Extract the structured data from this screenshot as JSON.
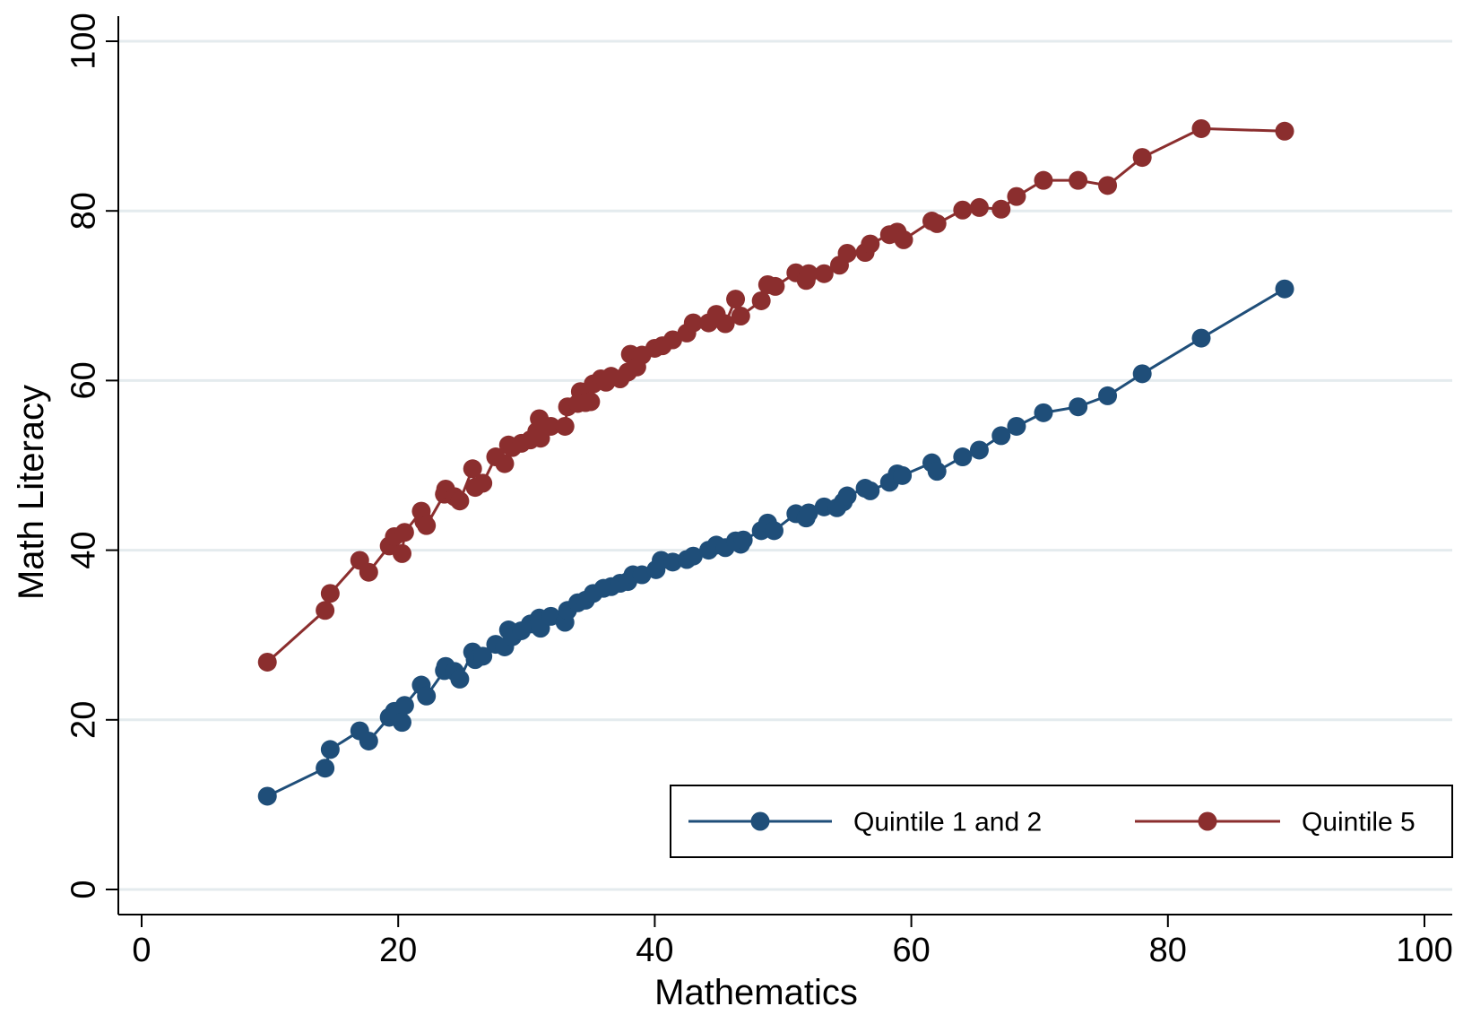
{
  "chart_data": {
    "type": "line",
    "title": "",
    "xlabel": "Mathematics",
    "ylabel": "Math Literacy",
    "xlim": [
      0,
      100
    ],
    "ylim": [
      0,
      100
    ],
    "xticks": [
      0,
      20,
      40,
      60,
      80,
      100
    ],
    "yticks": [
      0,
      20,
      40,
      60,
      80,
      100
    ],
    "grid": "horizontal",
    "legend_position": "bottom-right",
    "series": [
      {
        "name": "Quintile 1 and 2",
        "color": "#1f4e79",
        "markers": "filled-circle",
        "points": [
          [
            9.8,
            11
          ],
          [
            14.3,
            14.3
          ],
          [
            14.7,
            16.5
          ],
          [
            17,
            18.7
          ],
          [
            17.7,
            17.5
          ],
          [
            19.3,
            20.3
          ],
          [
            19.7,
            21
          ],
          [
            20.3,
            19.7
          ],
          [
            20.5,
            21.7
          ],
          [
            21.8,
            24.1
          ],
          [
            22.2,
            22.8
          ],
          [
            23.6,
            25.8
          ],
          [
            23.7,
            26.3
          ],
          [
            24.4,
            25.7
          ],
          [
            24.8,
            24.8
          ],
          [
            25.8,
            28
          ],
          [
            26,
            27.1
          ],
          [
            26.6,
            27.5
          ],
          [
            27.6,
            28.9
          ],
          [
            28.3,
            28.6
          ],
          [
            28.6,
            30.6
          ],
          [
            28.9,
            29.8
          ],
          [
            29.6,
            30.5
          ],
          [
            30.3,
            31.3
          ],
          [
            31,
            32
          ],
          [
            31.1,
            30.8
          ],
          [
            31.9,
            32.2
          ],
          [
            33,
            31.5
          ],
          [
            33.2,
            32.9
          ],
          [
            34,
            33.8
          ],
          [
            34.6,
            34.1
          ],
          [
            35.2,
            34.9
          ],
          [
            36,
            35.5
          ],
          [
            36.6,
            35.7
          ],
          [
            37.3,
            36.1
          ],
          [
            37.9,
            36.3
          ],
          [
            38.3,
            37.1
          ],
          [
            39,
            37.1
          ],
          [
            40.1,
            37.7
          ],
          [
            40.5,
            38.8
          ],
          [
            41.4,
            38.6
          ],
          [
            42.5,
            38.9
          ],
          [
            43,
            39.3
          ],
          [
            44.2,
            40
          ],
          [
            44.8,
            40.6
          ],
          [
            45.5,
            40.3
          ],
          [
            46.3,
            41.1
          ],
          [
            46.7,
            40.7
          ],
          [
            46.9,
            41.2
          ],
          [
            48.3,
            42.3
          ],
          [
            48.8,
            43.2
          ],
          [
            49.3,
            42.3
          ],
          [
            51,
            44.3
          ],
          [
            51.8,
            43.8
          ],
          [
            52,
            44.4
          ],
          [
            53.2,
            45.1
          ],
          [
            54.2,
            45
          ],
          [
            54.7,
            45.7
          ],
          [
            55,
            46.4
          ],
          [
            56.4,
            47.3
          ],
          [
            56.8,
            47
          ],
          [
            58.3,
            48
          ],
          [
            58.9,
            49
          ],
          [
            59.3,
            48.8
          ],
          [
            61.6,
            50.3
          ],
          [
            62,
            49.3
          ],
          [
            64,
            51
          ],
          [
            65.3,
            51.8
          ],
          [
            67,
            53.5
          ],
          [
            68.2,
            54.6
          ],
          [
            70.3,
            56.2
          ],
          [
            73,
            56.9
          ],
          [
            75.3,
            58.2
          ],
          [
            78,
            60.8
          ],
          [
            82.6,
            65
          ],
          [
            89.1,
            70.8
          ]
        ]
      },
      {
        "name": "Quintile 5",
        "color": "#8b2e2e",
        "markers": "filled-circle",
        "points": [
          [
            9.8,
            26.8
          ],
          [
            14.3,
            32.9
          ],
          [
            14.7,
            34.9
          ],
          [
            17,
            38.8
          ],
          [
            17.7,
            37.4
          ],
          [
            19.3,
            40.5
          ],
          [
            19.7,
            41.6
          ],
          [
            20.3,
            39.6
          ],
          [
            20.5,
            42.1
          ],
          [
            21.8,
            44.6
          ],
          [
            22,
            43.4
          ],
          [
            22.2,
            42.9
          ],
          [
            23.6,
            46.6
          ],
          [
            23.7,
            47.2
          ],
          [
            24.4,
            46.3
          ],
          [
            24.8,
            45.8
          ],
          [
            25.8,
            49.6
          ],
          [
            26,
            47.4
          ],
          [
            26.6,
            47.9
          ],
          [
            27.6,
            51
          ],
          [
            28.3,
            50.2
          ],
          [
            28.6,
            52.4
          ],
          [
            28.9,
            52.1
          ],
          [
            29.6,
            52.6
          ],
          [
            30.3,
            53
          ],
          [
            30.8,
            54
          ],
          [
            31,
            55.5
          ],
          [
            31.1,
            53.2
          ],
          [
            31.9,
            54.6
          ],
          [
            33,
            54.6
          ],
          [
            33.2,
            56.9
          ],
          [
            34,
            57.3
          ],
          [
            34.2,
            58.7
          ],
          [
            34.6,
            57.4
          ],
          [
            35,
            57.5
          ],
          [
            35.2,
            59.6
          ],
          [
            35.8,
            60.2
          ],
          [
            36.2,
            59.8
          ],
          [
            36.6,
            60.5
          ],
          [
            37.3,
            60.2
          ],
          [
            37.9,
            61
          ],
          [
            38.1,
            63.1
          ],
          [
            38.6,
            61.6
          ],
          [
            39,
            63
          ],
          [
            40,
            63.8
          ],
          [
            40.6,
            64.1
          ],
          [
            41.4,
            64.8
          ],
          [
            42.5,
            65.6
          ],
          [
            43,
            66.8
          ],
          [
            44.2,
            66.8
          ],
          [
            44.8,
            67.8
          ],
          [
            45.5,
            66.7
          ],
          [
            46.3,
            69.6
          ],
          [
            46.7,
            67.6
          ],
          [
            48.3,
            69.4
          ],
          [
            48.8,
            71.3
          ],
          [
            49.4,
            71.1
          ],
          [
            51,
            72.7
          ],
          [
            51.8,
            71.8
          ],
          [
            52,
            72.6
          ],
          [
            53.2,
            72.6
          ],
          [
            54.4,
            73.6
          ],
          [
            55,
            75
          ],
          [
            56.4,
            75.1
          ],
          [
            56.8,
            76.1
          ],
          [
            58.3,
            77.2
          ],
          [
            58.9,
            77.5
          ],
          [
            59.4,
            76.6
          ],
          [
            61.6,
            78.8
          ],
          [
            62,
            78.5
          ],
          [
            64,
            80.1
          ],
          [
            65.3,
            80.4
          ],
          [
            67,
            80.2
          ],
          [
            68.2,
            81.7
          ],
          [
            70.3,
            83.6
          ],
          [
            73,
            83.6
          ],
          [
            75.3,
            83
          ],
          [
            78,
            86.3
          ],
          [
            82.6,
            89.7
          ],
          [
            89.1,
            89.4
          ]
        ]
      }
    ]
  }
}
